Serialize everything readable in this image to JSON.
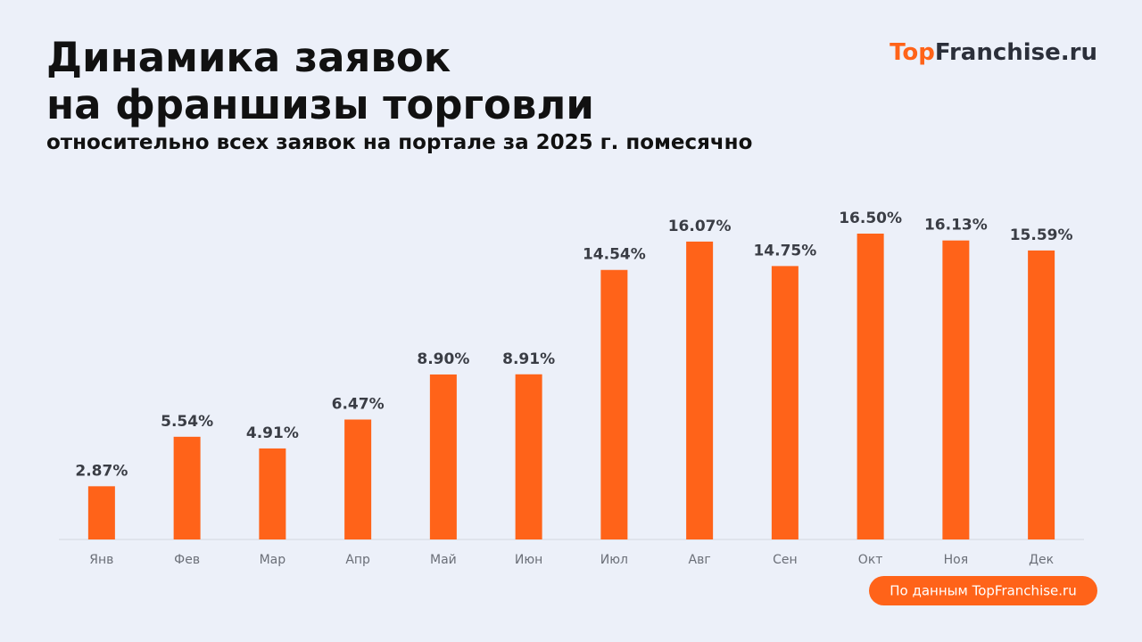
{
  "chart_data": {
    "type": "bar",
    "title": [
      "Динамика заявок",
      "на франшизы торговли"
    ],
    "subtitle": "относительно всех заявок на портале за 2025 г. помесячно",
    "brand": [
      "Top",
      "Franchise.ru"
    ],
    "source": "По данным TopFranchise.ru",
    "categories": [
      "Янв",
      "Фев",
      "Мар",
      "Апр",
      "Май",
      "Июн",
      "Июл",
      "Авг",
      "Сен",
      "Окт",
      "Ноя",
      "Дек"
    ],
    "values": [
      2.87,
      5.54,
      4.91,
      6.47,
      8.9,
      8.91,
      14.54,
      16.07,
      14.75,
      16.5,
      16.13,
      15.59
    ],
    "value_labels": [
      "2.87%",
      "5.54%",
      "4.91%",
      "6.47%",
      "8.90%",
      "8.91%",
      "14.54%",
      "16.07%",
      "14.75%",
      "16.50%",
      "16.13%",
      "15.59%"
    ],
    "color": "#ff6319"
  }
}
